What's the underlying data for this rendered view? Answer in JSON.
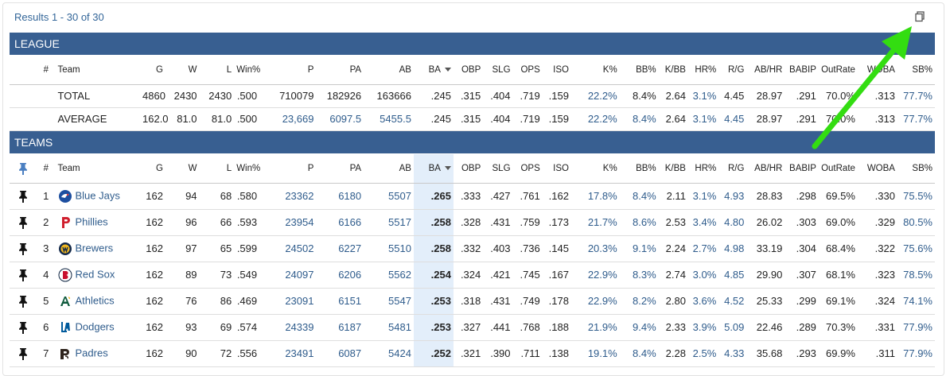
{
  "results_label": "Results 1 - 30 of 30",
  "icons": {
    "copy": "copy-icon",
    "pin": "pin-icon",
    "sort": "caret-down-icon"
  },
  "colors": {
    "section_bg": "#385f91",
    "link": "#2f5c8c",
    "sorted_col": "#e3eefa",
    "annotation_arrow": "#33dd11"
  },
  "league": {
    "title": "LEAGUE",
    "headers": [
      "#",
      "Team",
      "G",
      "W",
      "L",
      "Win%",
      "P",
      "PA",
      "AB",
      "BA",
      "OBP",
      "SLG",
      "OPS",
      "ISO",
      "K%",
      "BB%",
      "K/BB",
      "HR%",
      "R/G",
      "AB/HR",
      "BABIP",
      "OutRate",
      "WOBA",
      "SB%"
    ],
    "rows": [
      [
        "",
        "TOTAL",
        "4860",
        "2430",
        "2430",
        ".500",
        "710079",
        "182926",
        "163666",
        ".245",
        ".315",
        ".404",
        ".719",
        ".159",
        "22.2%",
        "8.4%",
        "2.64",
        "3.1%",
        "4.45",
        "28.97",
        ".291",
        "70.0%",
        ".313",
        "77.7%"
      ],
      [
        "",
        "AVERAGE",
        "162.0",
        "81.0",
        "81.0",
        ".500",
        "23,669",
        "6097.5",
        "5455.5",
        ".245",
        ".315",
        ".404",
        ".719",
        ".159",
        "22.2%",
        "8.4%",
        "2.64",
        "3.1%",
        "4.45",
        "28.97",
        ".291",
        "70.0%",
        ".313",
        "77.7%"
      ]
    ]
  },
  "teams": {
    "title": "TEAMS",
    "headers": [
      "#",
      "Team",
      "G",
      "W",
      "L",
      "Win%",
      "P",
      "PA",
      "AB",
      "BA",
      "OBP",
      "SLG",
      "OPS",
      "ISO",
      "K%",
      "BB%",
      "K/BB",
      "HR%",
      "R/G",
      "AB/HR",
      "BABIP",
      "OutRate",
      "WOBA",
      "SB%"
    ],
    "rows": [
      {
        "logo": "blue-jays-logo-icon",
        "cells": [
          "1",
          "Blue Jays",
          "162",
          "94",
          "68",
          ".580",
          "23362",
          "6180",
          "5507",
          ".265",
          ".333",
          ".427",
          ".761",
          ".162",
          "17.8%",
          "8.4%",
          "2.11",
          "3.1%",
          "4.93",
          "28.83",
          ".298",
          "69.5%",
          ".330",
          "75.5%"
        ]
      },
      {
        "logo": "phillies-logo-icon",
        "cells": [
          "2",
          "Phillies",
          "162",
          "96",
          "66",
          ".593",
          "23954",
          "6166",
          "5517",
          ".258",
          ".328",
          ".431",
          ".759",
          ".173",
          "21.7%",
          "8.6%",
          "2.53",
          "3.4%",
          "4.80",
          "26.02",
          ".303",
          "69.0%",
          ".329",
          "80.5%"
        ]
      },
      {
        "logo": "brewers-logo-icon",
        "cells": [
          "3",
          "Brewers",
          "162",
          "97",
          "65",
          ".599",
          "24502",
          "6227",
          "5510",
          ".258",
          ".332",
          ".403",
          ".736",
          ".145",
          "20.3%",
          "9.1%",
          "2.24",
          "2.7%",
          "4.98",
          "33.19",
          ".304",
          "68.4%",
          ".322",
          "75.6%"
        ]
      },
      {
        "logo": "red-sox-logo-icon",
        "cells": [
          "4",
          "Red Sox",
          "162",
          "89",
          "73",
          ".549",
          "24097",
          "6206",
          "5562",
          ".254",
          ".324",
          ".421",
          ".745",
          ".167",
          "22.9%",
          "8.3%",
          "2.74",
          "3.0%",
          "4.85",
          "29.90",
          ".307",
          "68.1%",
          ".323",
          "78.5%"
        ]
      },
      {
        "logo": "athletics-logo-icon",
        "cells": [
          "5",
          "Athletics",
          "162",
          "76",
          "86",
          ".469",
          "23091",
          "6151",
          "5547",
          ".253",
          ".318",
          ".431",
          ".749",
          ".178",
          "22.9%",
          "8.2%",
          "2.80",
          "3.6%",
          "4.52",
          "25.33",
          ".299",
          "69.1%",
          ".324",
          "74.1%"
        ]
      },
      {
        "logo": "dodgers-logo-icon",
        "cells": [
          "6",
          "Dodgers",
          "162",
          "93",
          "69",
          ".574",
          "24339",
          "6187",
          "5481",
          ".253",
          ".327",
          ".441",
          ".768",
          ".188",
          "21.9%",
          "9.4%",
          "2.33",
          "3.9%",
          "5.09",
          "22.46",
          ".289",
          "70.3%",
          ".331",
          "77.9%"
        ]
      },
      {
        "logo": "padres-logo-icon",
        "cells": [
          "7",
          "Padres",
          "162",
          "90",
          "72",
          ".556",
          "23491",
          "6087",
          "5424",
          ".252",
          ".321",
          ".390",
          ".711",
          ".138",
          "19.1%",
          "8.4%",
          "2.28",
          "2.5%",
          "4.33",
          "35.68",
          ".293",
          "69.9%",
          ".311",
          "77.9%"
        ]
      }
    ]
  }
}
